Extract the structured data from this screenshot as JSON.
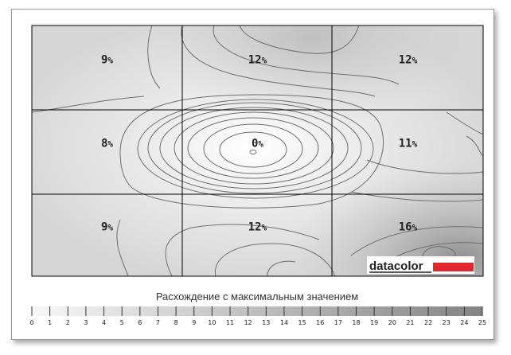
{
  "chart_data": {
    "type": "heatmap",
    "title": "",
    "rows": 3,
    "cols": 3,
    "values": [
      [
        9,
        12,
        12
      ],
      [
        8,
        0,
        11
      ],
      [
        9,
        12,
        16
      ]
    ],
    "unit": "%",
    "scale_caption": "Расхождение с максимальным значением",
    "scale_ticks": [
      0,
      1,
      2,
      3,
      4,
      5,
      6,
      7,
      8,
      9,
      10,
      11,
      12,
      13,
      14,
      15,
      16,
      17,
      18,
      19,
      20,
      21,
      22,
      23,
      24,
      25
    ],
    "scale_range": [
      0,
      25
    ],
    "contour_lines": true,
    "brand": "datacolor",
    "colors": {
      "low": "#f4f4f4",
      "high": "#8a8a8a",
      "grid": "#000000",
      "contour": "#666666",
      "brand_bar": "#e0262f"
    }
  }
}
